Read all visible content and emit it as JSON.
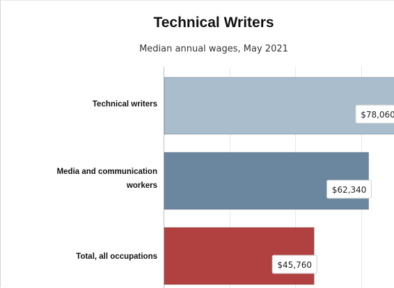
{
  "chart_data": {
    "type": "bar",
    "orientation": "horizontal",
    "title": "Technical Writers",
    "subtitle": "Median annual wages, May 2021",
    "categories": [
      "Technical writers",
      "Media and communication\nworkers",
      "Total, all occupations"
    ],
    "values": [
      78060,
      62340,
      45760
    ],
    "value_labels": [
      "$78,060",
      "$62,340",
      "$45,760"
    ],
    "colors": [
      "#a9bdcc",
      "#6b87a0",
      "#b14140"
    ],
    "xlim": [
      0,
      80000
    ],
    "grid": true,
    "legend": "none"
  }
}
